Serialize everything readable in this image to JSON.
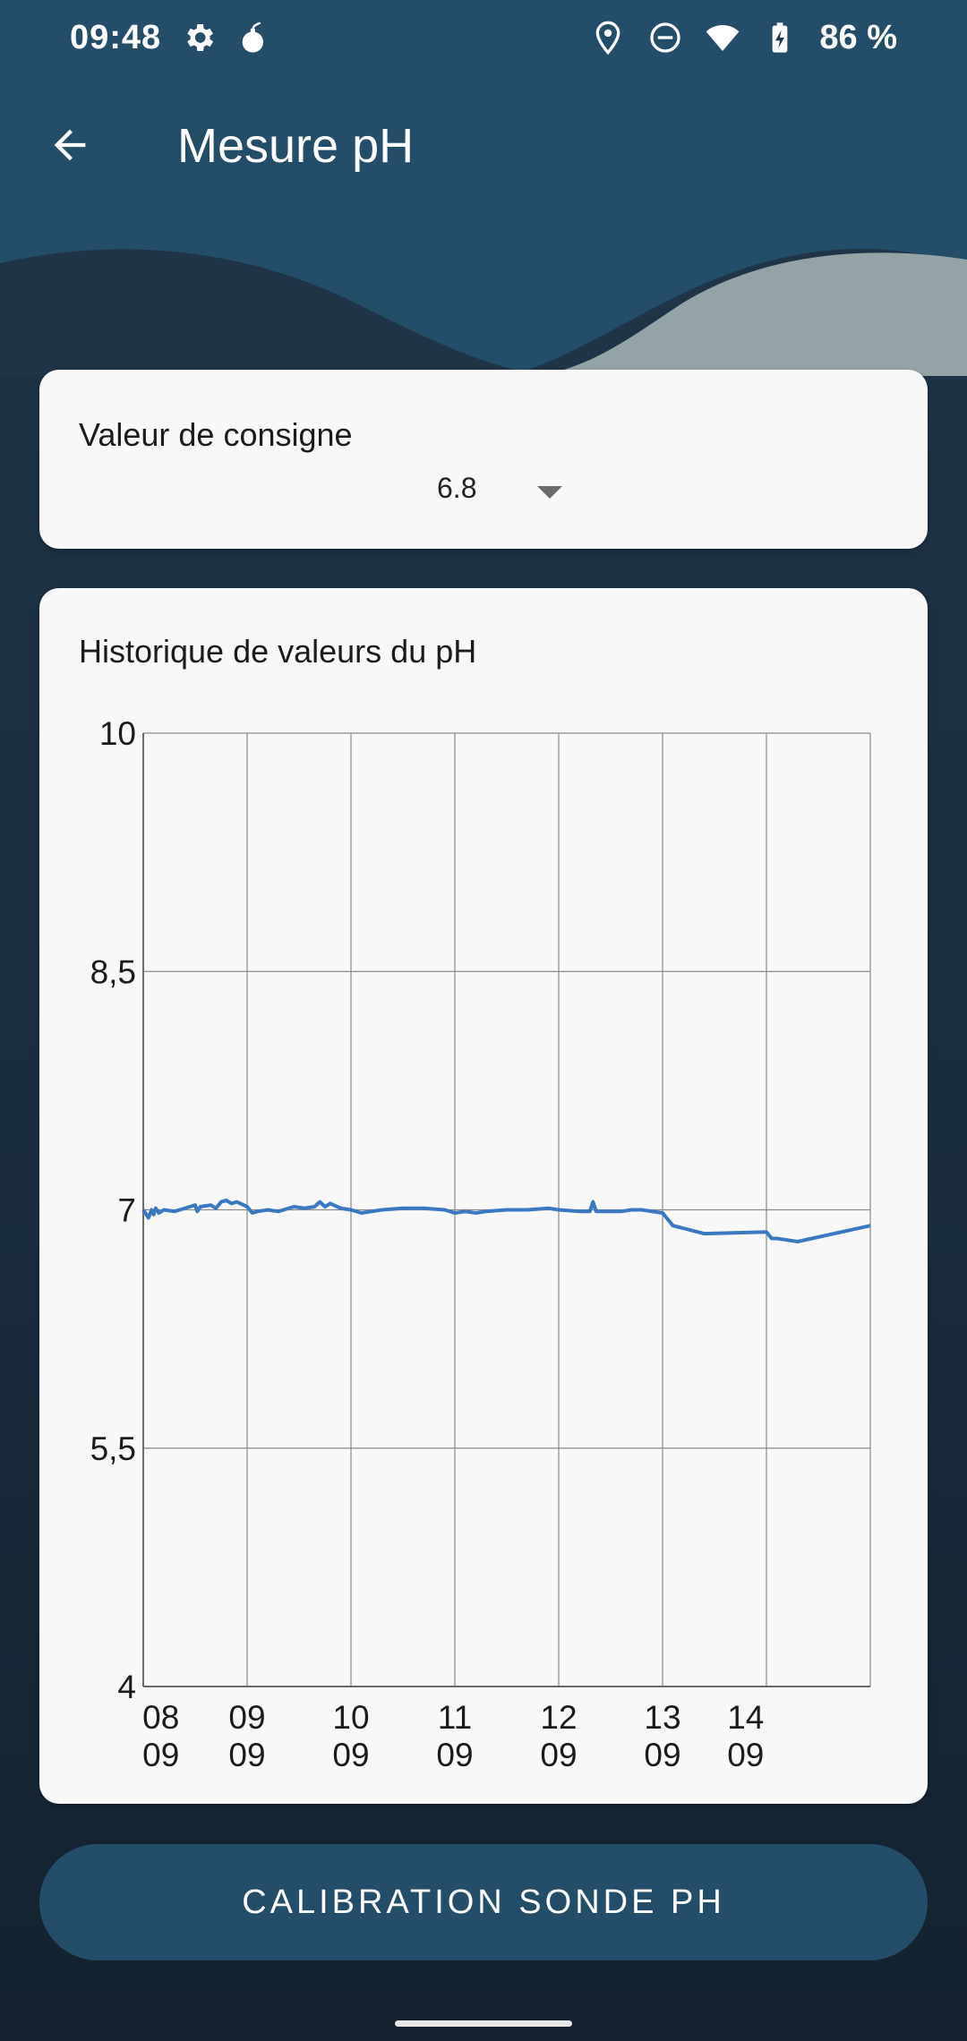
{
  "status_bar": {
    "time": "09:48",
    "battery": "86 %",
    "left_icons": [
      "gear-icon",
      "bomb-icon"
    ],
    "right_icons": [
      "location-icon",
      "do-not-disturb-icon",
      "wifi-icon",
      "battery-charging-icon"
    ]
  },
  "app_bar": {
    "title": "Mesure pH",
    "back_icon": "arrow-left-icon"
  },
  "setpoint": {
    "label": "Valeur de consigne",
    "value": "6.8"
  },
  "history": {
    "title": "Historique de valeurs du pH"
  },
  "chart_data": {
    "type": "line",
    "title": "Historique de valeurs du pH",
    "xlabel": "",
    "ylabel": "",
    "ylim": [
      4,
      10
    ],
    "yticks": [
      "10",
      "8,5",
      "7",
      "5,5",
      "4"
    ],
    "ytick_values": [
      10,
      8.5,
      7,
      5.5,
      4
    ],
    "xlim": [
      0,
      7
    ],
    "xticks": [
      {
        "day": "08",
        "month": "09",
        "pos": 0.17
      },
      {
        "day": "09",
        "month": "09",
        "pos": 1.0
      },
      {
        "day": "10",
        "month": "09",
        "pos": 2.0
      },
      {
        "day": "11",
        "month": "09",
        "pos": 3.0
      },
      {
        "day": "12",
        "month": "09",
        "pos": 4.0
      },
      {
        "day": "13",
        "month": "09",
        "pos": 5.0
      },
      {
        "day": "14",
        "month": "09",
        "pos": 5.8
      }
    ],
    "vgrid": [
      0,
      1,
      2,
      3,
      4,
      5,
      6,
      7
    ],
    "grid": true,
    "series_color": "#3a78c2",
    "series": [
      {
        "x": [
          0.0,
          0.05,
          0.08,
          0.1,
          0.12,
          0.15,
          0.2,
          0.3,
          0.45,
          0.5,
          0.52,
          0.55,
          0.65,
          0.7,
          0.75,
          0.8,
          0.85,
          0.9,
          1.0,
          1.05,
          1.1,
          1.2,
          1.3,
          1.45,
          1.55,
          1.65,
          1.7,
          1.75,
          1.8,
          1.9,
          2.0,
          2.1,
          2.3,
          2.5,
          2.7,
          2.9,
          3.0,
          3.1,
          3.2,
          3.3,
          3.5,
          3.7,
          3.9,
          4.0,
          4.2,
          4.3,
          4.33,
          4.36,
          4.5,
          4.6,
          4.7,
          4.8,
          4.9,
          5.0,
          5.1,
          5.4,
          6.0,
          6.05,
          6.1,
          6.3,
          7.0
        ],
        "y": [
          7.0,
          6.95,
          7.0,
          6.97,
          7.01,
          6.98,
          7.0,
          6.99,
          7.02,
          7.03,
          6.99,
          7.02,
          7.03,
          7.01,
          7.05,
          7.06,
          7.04,
          7.05,
          7.02,
          6.98,
          6.99,
          7.0,
          6.99,
          7.02,
          7.01,
          7.02,
          7.05,
          7.02,
          7.04,
          7.01,
          7.0,
          6.98,
          7.0,
          7.01,
          7.01,
          7.0,
          6.98,
          6.99,
          6.98,
          6.99,
          7.0,
          7.0,
          7.01,
          7.0,
          6.99,
          6.99,
          7.05,
          6.99,
          6.99,
          6.99,
          7.0,
          7.0,
          6.99,
          6.98,
          6.9,
          6.85,
          6.86,
          6.82,
          6.82,
          6.8,
          6.9
        ]
      }
    ]
  },
  "calibration_button": {
    "label": "CALIBRATION SONDE PH"
  }
}
